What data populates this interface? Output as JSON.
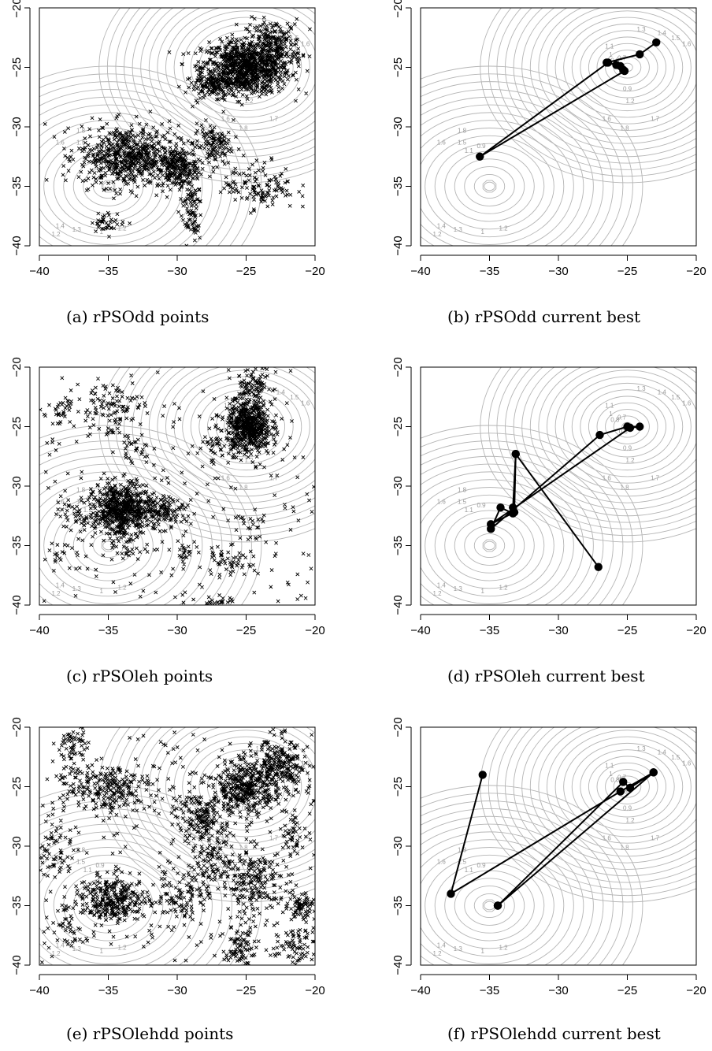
{
  "chart_data": [
    {
      "type": "scatter",
      "caption": "(a) rPSOdd points",
      "xlim": [
        -40,
        -20
      ],
      "ylim": [
        -40,
        -20
      ],
      "x_ticks": [
        -40,
        -35,
        -30,
        -25,
        -20
      ],
      "y_ticks": [
        -40,
        -35,
        -30,
        -25,
        -20
      ],
      "contours": true,
      "clusters": [
        {
          "cx": -25,
          "cy": -25,
          "sx": 1.6,
          "sy": 1.1,
          "n": 900
        },
        {
          "cx": -23,
          "cy": -23,
          "sx": 1.0,
          "sy": 1.0,
          "n": 200
        },
        {
          "cx": -27,
          "cy": -26.5,
          "sx": 1.2,
          "sy": 0.5,
          "n": 150
        },
        {
          "cx": -33.5,
          "cy": -32.5,
          "sx": 1.8,
          "sy": 1.3,
          "n": 650
        },
        {
          "cx": -30,
          "cy": -33.5,
          "sx": 0.7,
          "sy": 0.8,
          "n": 200
        },
        {
          "cx": -27.5,
          "cy": -31.5,
          "sx": 0.7,
          "sy": 0.9,
          "n": 120
        },
        {
          "cx": -29,
          "cy": -37,
          "sx": 0.4,
          "sy": 1.4,
          "n": 90
        },
        {
          "cx": -24,
          "cy": -35,
          "sx": 1.3,
          "sy": 1.0,
          "n": 130
        },
        {
          "cx": -35,
          "cy": -38,
          "sx": 0.6,
          "sy": 0.4,
          "n": 40
        }
      ],
      "uniform_points": 0
    },
    {
      "type": "line",
      "caption": "(b) rPSOdd current best",
      "xlim": [
        -40,
        -20
      ],
      "ylim": [
        -40,
        -20
      ],
      "x_ticks": [
        -40,
        -35,
        -30,
        -25,
        -20
      ],
      "y_ticks": [
        -40,
        -35,
        -30,
        -25,
        -20
      ],
      "contours": true,
      "path": [
        [
          -22.9,
          -22.9
        ],
        [
          -24.1,
          -23.9
        ],
        [
          -26.5,
          -24.6
        ],
        [
          -25.8,
          -24.8
        ],
        [
          -25.2,
          -25.3
        ],
        [
          -35.7,
          -32.5
        ],
        [
          -26.4,
          -24.6
        ],
        [
          -25.5,
          -24.9
        ],
        [
          -25.3,
          -25.2
        ]
      ]
    },
    {
      "type": "scatter",
      "caption": "(c) rPSOleh points",
      "xlim": [
        -40,
        -20
      ],
      "ylim": [
        -40,
        -20
      ],
      "x_ticks": [
        -40,
        -35,
        -30,
        -25,
        -20
      ],
      "y_ticks": [
        -40,
        -35,
        -30,
        -25,
        -20
      ],
      "contours": true,
      "clusters": [
        {
          "cx": -24.8,
          "cy": -25,
          "sx": 0.8,
          "sy": 1.1,
          "n": 600
        },
        {
          "cx": -24.5,
          "cy": -21.5,
          "sx": 0.7,
          "sy": 0.8,
          "n": 80
        },
        {
          "cx": -34,
          "cy": -32,
          "sx": 1.0,
          "sy": 1.1,
          "n": 600
        },
        {
          "cx": -31,
          "cy": -32,
          "sx": 0.8,
          "sy": 0.6,
          "n": 120
        },
        {
          "cx": -37,
          "cy": -32.5,
          "sx": 0.8,
          "sy": 0.8,
          "n": 50
        },
        {
          "cx": -35,
          "cy": -23.5,
          "sx": 1.2,
          "sy": 1.3,
          "n": 110
        },
        {
          "cx": -38.3,
          "cy": -23.5,
          "sx": 0.5,
          "sy": 0.6,
          "n": 30
        },
        {
          "cx": -33,
          "cy": -27,
          "sx": 0.6,
          "sy": 0.6,
          "n": 25
        },
        {
          "cx": -27.5,
          "cy": -27,
          "sx": 0.6,
          "sy": 1.0,
          "n": 40
        },
        {
          "cx": -26.5,
          "cy": -36.5,
          "sx": 1.0,
          "sy": 0.5,
          "n": 50
        },
        {
          "cx": -27,
          "cy": -40,
          "sx": 0.6,
          "sy": 0.4,
          "n": 35
        },
        {
          "cx": -29.5,
          "cy": -35.5,
          "sx": 0.5,
          "sy": 0.6,
          "n": 25
        },
        {
          "cx": -24.5,
          "cy": -33.5,
          "sx": 0.5,
          "sy": 0.6,
          "n": 20
        },
        {
          "cx": -33.5,
          "cy": -35.5,
          "sx": 0.5,
          "sy": 0.4,
          "n": 15
        },
        {
          "cx": -38.5,
          "cy": -36,
          "sx": 0.6,
          "sy": 0.6,
          "n": 15
        }
      ],
      "uniform_points": 220
    },
    {
      "type": "line",
      "caption": "(d) rPSOleh current best",
      "xlim": [
        -40,
        -20
      ],
      "ylim": [
        -40,
        -20
      ],
      "x_ticks": [
        -40,
        -35,
        -30,
        -25,
        -20
      ],
      "y_ticks": [
        -40,
        -35,
        -30,
        -25,
        -20
      ],
      "contours": true,
      "path": [
        [
          -27.1,
          -36.8
        ],
        [
          -33.1,
          -27.3
        ],
        [
          -33.3,
          -31.8
        ],
        [
          -33.3,
          -32.3
        ],
        [
          -34.2,
          -31.8
        ],
        [
          -34.9,
          -33.6
        ],
        [
          -27,
          -25.7
        ],
        [
          -25,
          -25
        ],
        [
          -24.1,
          -25
        ],
        [
          -24.8,
          -25.1
        ],
        [
          -34.9,
          -33.2
        ],
        [
          -33.2,
          -32.2
        ],
        [
          -33.1,
          -27.3
        ]
      ]
    },
    {
      "type": "scatter",
      "caption": "(e) rPSOlehdd points",
      "xlim": [
        -40,
        -20
      ],
      "ylim": [
        -40,
        -20
      ],
      "x_ticks": [
        -40,
        -35,
        -30,
        -25,
        -20
      ],
      "y_ticks": [
        -40,
        -35,
        -30,
        -25,
        -20
      ],
      "contours": true,
      "clusters": [
        {
          "cx": -25,
          "cy": -25,
          "sx": 1.0,
          "sy": 1.1,
          "n": 350
        },
        {
          "cx": -22.5,
          "cy": -23.5,
          "sx": 1.0,
          "sy": 1.3,
          "n": 250
        },
        {
          "cx": -34.5,
          "cy": -34.5,
          "sx": 1.2,
          "sy": 0.9,
          "n": 300
        },
        {
          "cx": -35.5,
          "cy": -25,
          "sx": 2.0,
          "sy": 1.0,
          "n": 250
        },
        {
          "cx": -37.5,
          "cy": -21.5,
          "sx": 0.5,
          "sy": 0.8,
          "n": 50
        },
        {
          "cx": -28,
          "cy": -27.5,
          "sx": 1.0,
          "sy": 1.4,
          "n": 200
        },
        {
          "cx": -24.5,
          "cy": -33,
          "sx": 1.2,
          "sy": 1.4,
          "n": 200
        },
        {
          "cx": -21,
          "cy": -35,
          "sx": 0.6,
          "sy": 0.5,
          "n": 70
        },
        {
          "cx": -21.5,
          "cy": -38.5,
          "sx": 0.7,
          "sy": 0.8,
          "n": 60
        },
        {
          "cx": -25.5,
          "cy": -38.5,
          "sx": 0.5,
          "sy": 1.0,
          "n": 80
        },
        {
          "cx": -39,
          "cy": -30.5,
          "sx": 0.7,
          "sy": 1.2,
          "n": 60
        },
        {
          "cx": -29.5,
          "cy": -34,
          "sx": 1.0,
          "sy": 1.2,
          "n": 100
        },
        {
          "cx": -27.3,
          "cy": -31,
          "sx": 0.6,
          "sy": 1.2,
          "n": 80
        },
        {
          "cx": -21.5,
          "cy": -29,
          "sx": 0.6,
          "sy": 1.0,
          "n": 50
        },
        {
          "cx": -38,
          "cy": -36.5,
          "sx": 0.6,
          "sy": 1.2,
          "n": 40
        }
      ],
      "uniform_points": 280
    },
    {
      "type": "line",
      "caption": "(f) rPSOlehdd current best",
      "xlim": [
        -40,
        -20
      ],
      "ylim": [
        -40,
        -20
      ],
      "x_ticks": [
        -40,
        -35,
        -30,
        -25,
        -20
      ],
      "y_ticks": [
        -40,
        -35,
        -30,
        -25,
        -20
      ],
      "contours": true,
      "path": [
        [
          -35.5,
          -24
        ],
        [
          -37.8,
          -34
        ],
        [
          -25.5,
          -25.4
        ],
        [
          -23.1,
          -23.8
        ],
        [
          -34.4,
          -35
        ],
        [
          -25.3,
          -24.6
        ],
        [
          -24.8,
          -25.1
        ],
        [
          -23.1,
          -23.8
        ],
        [
          -34.4,
          -35
        ]
      ]
    }
  ]
}
